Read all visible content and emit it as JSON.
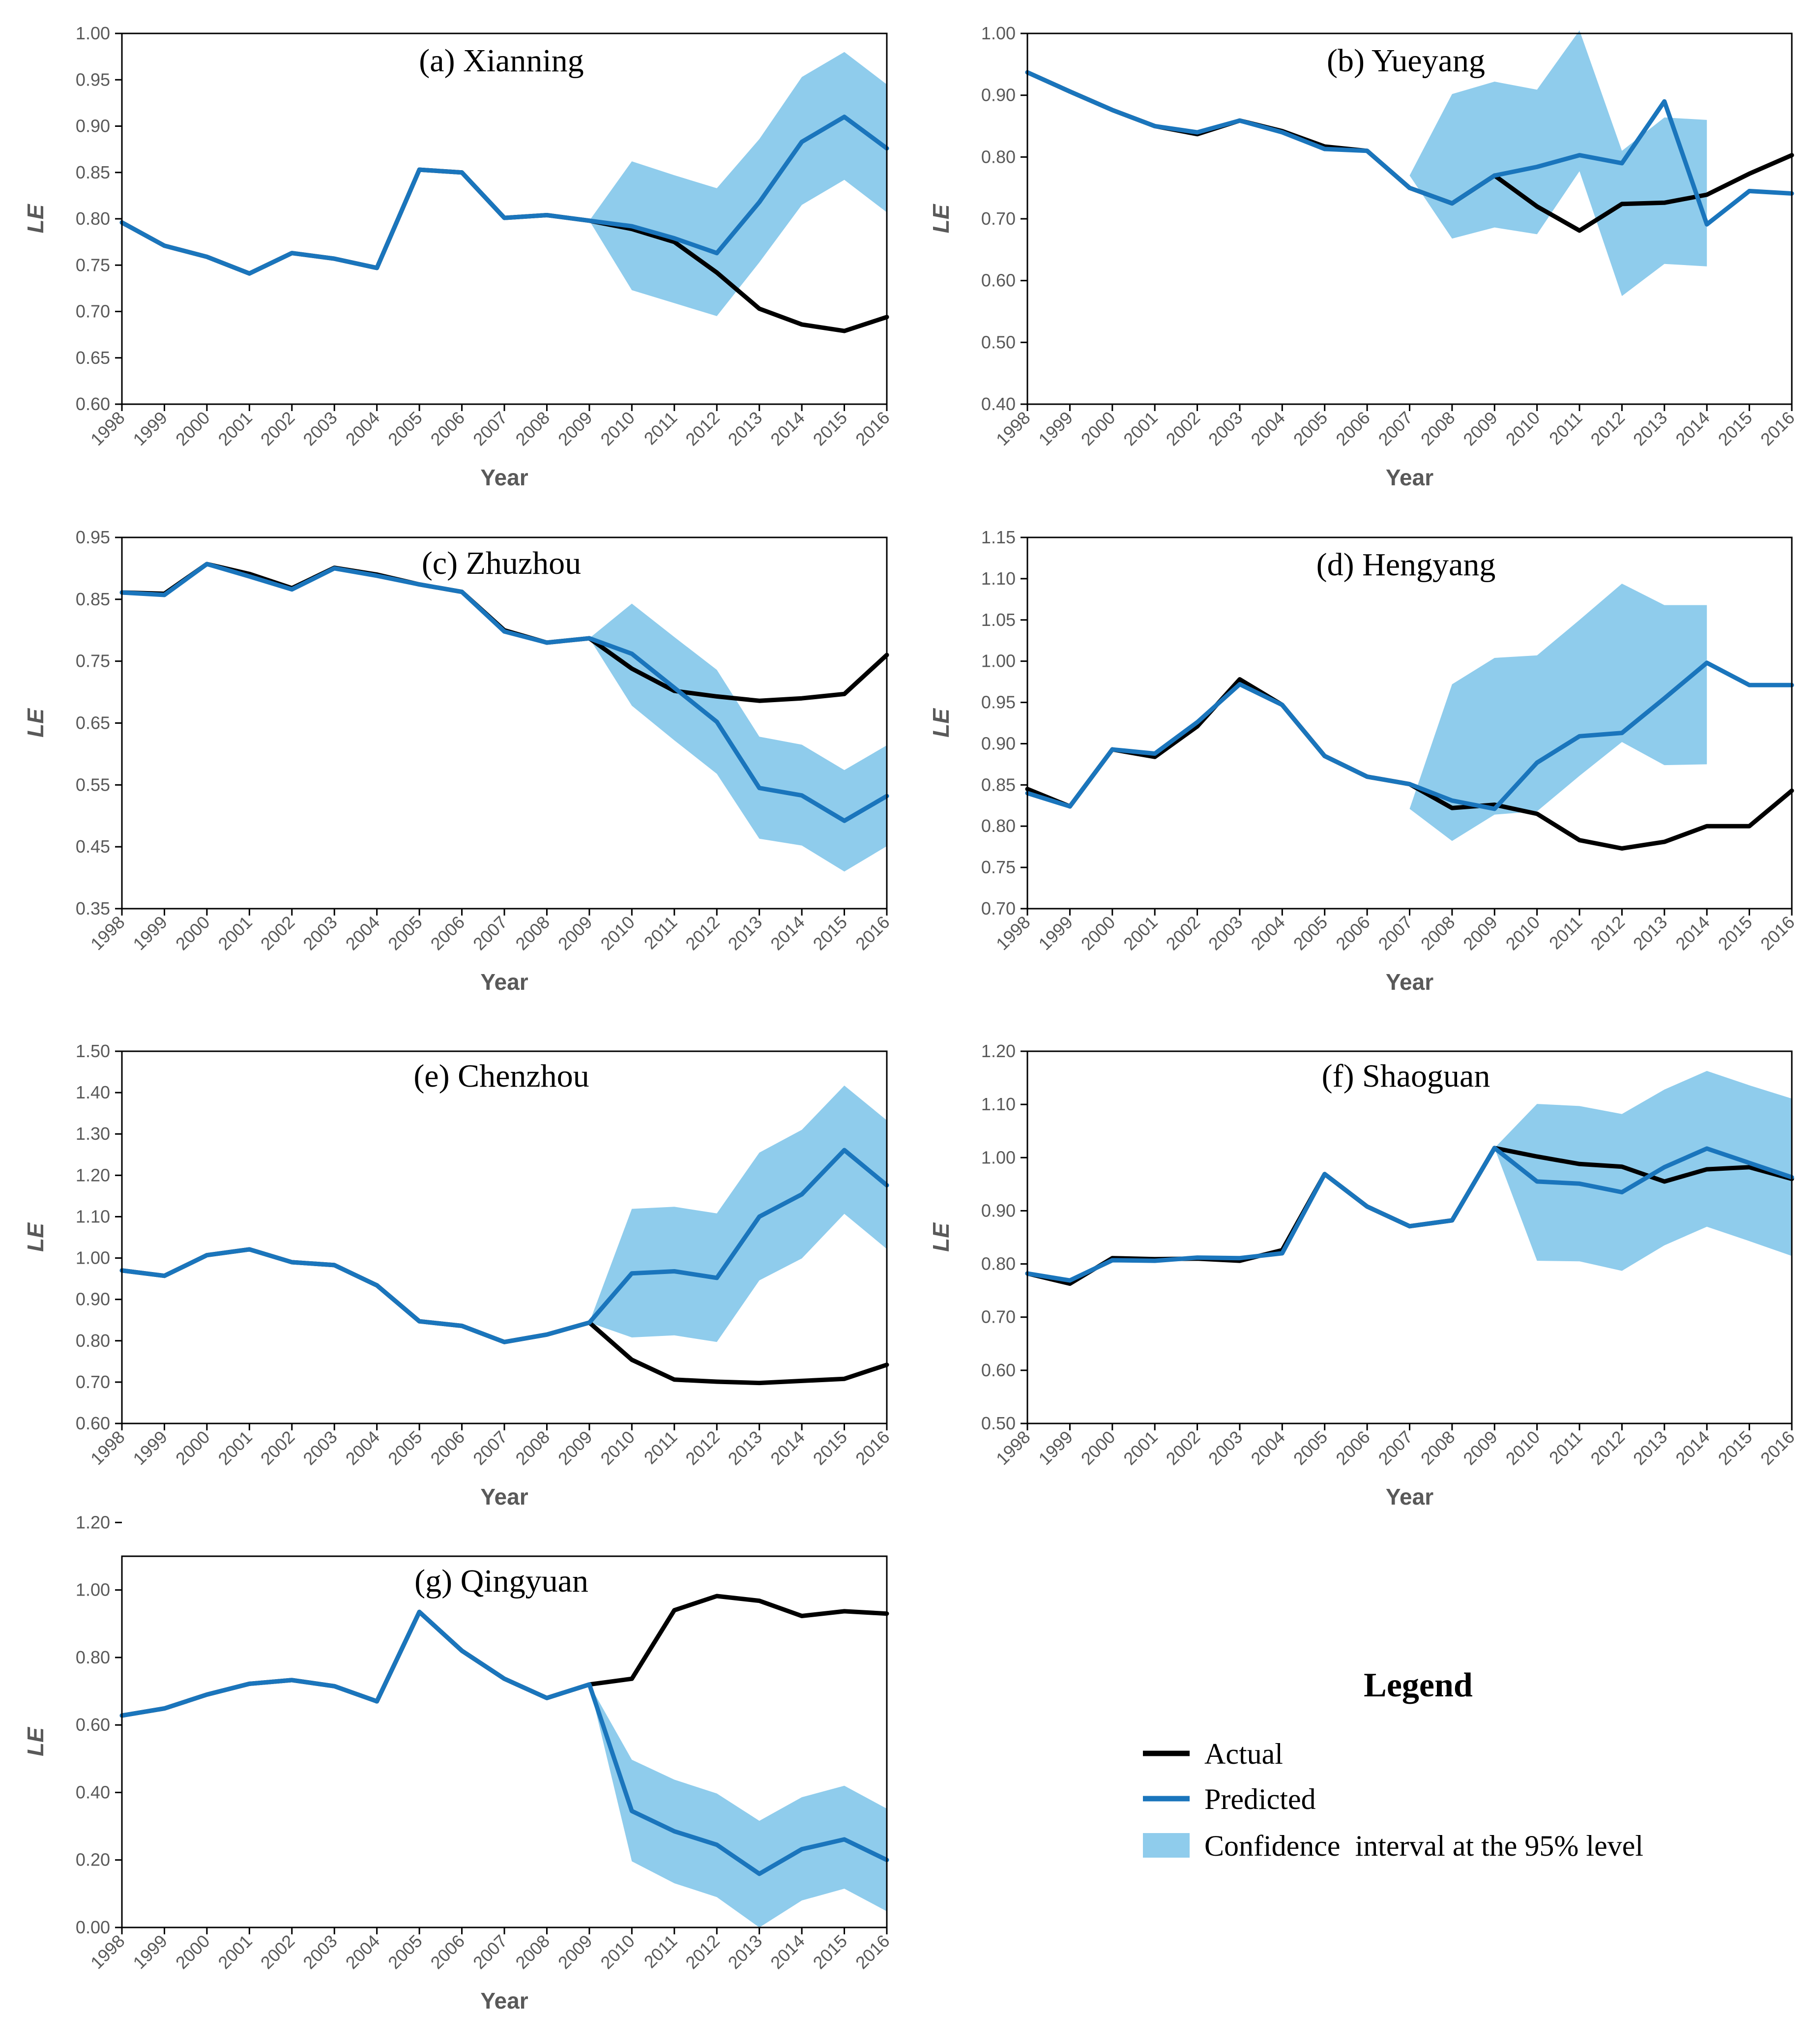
{
  "colors": {
    "actual": "#000000",
    "predicted": "#1a75bc",
    "ci": "#8fccec",
    "axis": "#000000",
    "tick": "#595959"
  },
  "legend": {
    "title": "Legend",
    "actual": "Actual",
    "predicted": "Predicted",
    "ci": "Confidence  interval at the 95% level"
  },
  "chart_data": [
    {
      "type": "line",
      "title": "(a) Xianning",
      "xlabel": "Year",
      "ylabel": "LE",
      "categories": [
        "1998",
        "1999",
        "2000",
        "2001",
        "2002",
        "2003",
        "2004",
        "2005",
        "2006",
        "2007",
        "2008",
        "2009",
        "2010",
        "2011",
        "2012",
        "2013",
        "2014",
        "2015",
        "2016"
      ],
      "ylim": [
        0.6,
        1.0
      ],
      "ystep": 0.05,
      "ydec": 2,
      "series": [
        {
          "name": "Actual",
          "values": [
            0.796,
            0.771,
            0.759,
            0.741,
            0.763,
            0.757,
            0.747,
            0.853,
            0.85,
            0.801,
            0.804,
            0.798,
            0.789,
            0.775,
            0.742,
            0.703,
            0.686,
            0.679,
            0.694
          ]
        },
        {
          "name": "Predicted",
          "values": [
            0.796,
            0.771,
            0.759,
            0.741,
            0.763,
            0.757,
            0.747,
            0.853,
            0.85,
            0.801,
            0.804,
            0.798,
            0.792,
            0.779,
            0.763,
            0.818,
            0.883,
            0.91,
            0.876
          ]
        }
      ],
      "ci": {
        "start_index": 11,
        "lower": [
          0.798,
          0.723,
          0.709,
          0.695,
          0.753,
          0.815,
          0.842,
          0.807
        ],
        "upper": [
          0.798,
          0.862,
          0.847,
          0.833,
          0.886,
          0.953,
          0.98,
          0.945
        ]
      }
    },
    {
      "type": "line",
      "title": "(b) Yueyang",
      "xlabel": "Year",
      "ylabel": "LE",
      "categories": [
        "1998",
        "1999",
        "2000",
        "2001",
        "2002",
        "2003",
        "2004",
        "2005",
        "2006",
        "2007",
        "2008",
        "2009",
        "2010",
        "2011",
        "2012",
        "2013",
        "2014",
        "2015",
        "2016"
      ],
      "ylim": [
        0.4,
        1.0
      ],
      "ystep": 0.1,
      "ydec": 2,
      "series": [
        {
          "name": "Actual",
          "values": [
            0.937,
            0.906,
            0.876,
            0.85,
            0.837,
            0.859,
            0.842,
            0.817,
            0.81,
            0.75,
            0.725,
            0.77,
            0.72,
            0.681,
            0.724,
            0.726,
            0.739,
            0.773,
            0.803
          ]
        },
        {
          "name": "Predicted",
          "values": [
            0.937,
            0.906,
            0.876,
            0.85,
            0.84,
            0.859,
            0.84,
            0.813,
            0.81,
            0.75,
            0.725,
            0.77,
            0.784,
            0.803,
            0.79,
            0.89,
            0.691,
            0.745,
            0.741
          ]
        }
      ],
      "ci": {
        "start_index": 9,
        "lower": [
          0.77,
          0.668,
          0.686,
          0.675,
          0.777,
          0.575,
          0.627,
          0.623
        ],
        "upper": [
          0.77,
          0.902,
          0.922,
          0.909,
          1.005,
          0.81,
          0.864,
          0.86
        ]
      }
    },
    {
      "type": "line",
      "title": "(c) Zhuzhou",
      "xlabel": "Year",
      "ylabel": "LE",
      "categories": [
        "1998",
        "1999",
        "2000",
        "2001",
        "2002",
        "2003",
        "2004",
        "2005",
        "2006",
        "2007",
        "2008",
        "2009",
        "2010",
        "2011",
        "2012",
        "2013",
        "2014",
        "2015",
        "2016"
      ],
      "ylim": [
        0.35,
        0.95
      ],
      "ystep": 0.1,
      "ydec": 2,
      "series": [
        {
          "name": "Actual",
          "values": [
            0.861,
            0.859,
            0.907,
            0.891,
            0.868,
            0.901,
            0.89,
            0.874,
            0.862,
            0.8,
            0.78,
            0.787,
            0.738,
            0.702,
            0.693,
            0.686,
            0.69,
            0.697,
            0.76
          ]
        },
        {
          "name": "Predicted",
          "values": [
            0.861,
            0.857,
            0.907,
            0.887,
            0.866,
            0.9,
            0.888,
            0.874,
            0.862,
            0.798,
            0.78,
            0.787,
            0.762,
            0.707,
            0.652,
            0.545,
            0.533,
            0.492,
            0.532
          ]
        }
      ],
      "ci": {
        "start_index": 11,
        "lower": [
          0.787,
          0.678,
          0.622,
          0.568,
          0.463,
          0.452,
          0.41,
          0.451
        ],
        "upper": [
          0.787,
          0.843,
          0.789,
          0.736,
          0.628,
          0.615,
          0.574,
          0.614
        ]
      }
    },
    {
      "type": "line",
      "title": "(d) Hengyang",
      "xlabel": "Year",
      "ylabel": "LE",
      "categories": [
        "1998",
        "1999",
        "2000",
        "2001",
        "2002",
        "2003",
        "2004",
        "2005",
        "2006",
        "2007",
        "2008",
        "2009",
        "2010",
        "2011",
        "2012",
        "2013",
        "2014",
        "2015",
        "2016"
      ],
      "ylim": [
        0.7,
        1.15
      ],
      "ystep": 0.05,
      "ydec": 2,
      "series": [
        {
          "name": "Actual",
          "values": [
            0.845,
            0.824,
            0.893,
            0.884,
            0.921,
            0.978,
            0.947,
            0.885,
            0.86,
            0.851,
            0.822,
            0.826,
            0.815,
            0.783,
            0.773,
            0.781,
            0.8,
            0.8,
            0.843
          ]
        },
        {
          "name": "Predicted",
          "values": [
            0.84,
            0.824,
            0.893,
            0.888,
            0.926,
            0.972,
            0.947,
            0.885,
            0.86,
            0.851,
            0.831,
            0.821,
            0.877,
            0.909,
            0.913,
            0.955,
            0.998,
            0.971,
            0.971
          ]
        }
      ],
      "ci": {
        "start_index": 9,
        "lower": [
          0.821,
          0.782,
          0.814,
          0.818,
          0.861,
          0.902,
          0.874,
          0.875
        ],
        "upper": [
          0.821,
          0.972,
          1.004,
          1.007,
          1.05,
          1.094,
          1.068,
          1.068
        ]
      }
    },
    {
      "type": "line",
      "title": "(e) Chenzhou",
      "xlabel": "Year",
      "ylabel": "LE",
      "categories": [
        "1998",
        "1999",
        "2000",
        "2001",
        "2002",
        "2003",
        "2004",
        "2005",
        "2006",
        "2007",
        "2008",
        "2009",
        "2010",
        "2011",
        "2012",
        "2013",
        "2014",
        "2015",
        "2016"
      ],
      "ylim": [
        0.6,
        1.5
      ],
      "ystep": 0.1,
      "ydec": 2,
      "series": [
        {
          "name": "Actual",
          "values": [
            0.97,
            0.957,
            1.007,
            1.021,
            0.99,
            0.983,
            0.934,
            0.847,
            0.836,
            0.797,
            0.815,
            0.844,
            0.754,
            0.706,
            0.701,
            0.698,
            0.703,
            0.708,
            0.742
          ]
        },
        {
          "name": "Predicted",
          "values": [
            0.97,
            0.957,
            1.007,
            1.021,
            0.99,
            0.983,
            0.934,
            0.847,
            0.836,
            0.797,
            0.815,
            0.844,
            0.963,
            0.968,
            0.952,
            1.1,
            1.154,
            1.261,
            1.176
          ]
        }
      ],
      "ci": {
        "start_index": 11,
        "lower": [
          0.844,
          0.808,
          0.813,
          0.797,
          0.946,
          0.999,
          1.107,
          1.022
        ],
        "upper": [
          0.844,
          1.119,
          1.124,
          1.108,
          1.255,
          1.31,
          1.417,
          1.333
        ]
      }
    },
    {
      "type": "line",
      "title": "(f) Shaoguan",
      "xlabel": "Year",
      "ylabel": "LE",
      "categories": [
        "1998",
        "1999",
        "2000",
        "2001",
        "2002",
        "2003",
        "2004",
        "2005",
        "2006",
        "2007",
        "2008",
        "2009",
        "2010",
        "2011",
        "2012",
        "2013",
        "2014",
        "2015",
        "2016"
      ],
      "ylim": [
        0.5,
        1.2
      ],
      "ystep": 0.1,
      "ydec": 2,
      "series": [
        {
          "name": "Actual",
          "values": [
            0.782,
            0.763,
            0.811,
            0.809,
            0.81,
            0.806,
            0.826,
            0.969,
            0.908,
            0.871,
            0.882,
            1.018,
            1.002,
            0.988,
            0.983,
            0.955,
            0.978,
            0.982,
            0.96
          ]
        },
        {
          "name": "Predicted",
          "values": [
            0.782,
            0.769,
            0.807,
            0.806,
            0.812,
            0.811,
            0.82,
            0.969,
            0.908,
            0.871,
            0.882,
            1.018,
            0.955,
            0.951,
            0.935,
            0.982,
            1.017,
            0.99,
            0.963
          ]
        }
      ],
      "ci": {
        "start_index": 11,
        "lower": [
          1.018,
          0.806,
          0.805,
          0.787,
          0.835,
          0.87,
          0.843,
          0.815
        ],
        "upper": [
          1.018,
          1.101,
          1.097,
          1.082,
          1.128,
          1.163,
          1.136,
          1.111
        ]
      }
    },
    {
      "type": "line",
      "title": "(g) Qingyuan",
      "xlabel": "Year",
      "ylabel": "LE",
      "categories": [
        "1998",
        "1999",
        "2000",
        "2001",
        "2002",
        "2003",
        "2004",
        "2005",
        "2006",
        "2007",
        "2008",
        "2009",
        "2010",
        "2011",
        "2012",
        "2013",
        "2014",
        "2015",
        "2016"
      ],
      "ylim": [
        0.0,
        1.1
      ],
      "ystep": 0.2,
      "ydec": 2,
      "series": [
        {
          "name": "Actual",
          "values": [
            0.628,
            0.649,
            0.69,
            0.722,
            0.733,
            0.715,
            0.67,
            0.935,
            0.82,
            0.737,
            0.68,
            0.72,
            0.737,
            0.94,
            0.982,
            0.968,
            0.923,
            0.937,
            0.93
          ]
        },
        {
          "name": "Predicted",
          "values": [
            0.628,
            0.649,
            0.69,
            0.722,
            0.733,
            0.715,
            0.67,
            0.935,
            0.82,
            0.737,
            0.68,
            0.72,
            0.345,
            0.285,
            0.245,
            0.159,
            0.232,
            0.261,
            0.2
          ]
        }
      ],
      "ci": {
        "start_index": 11,
        "lower": [
          0.72,
          0.196,
          0.131,
          0.09,
          0.0,
          0.08,
          0.115,
          0.048
        ],
        "upper": [
          0.72,
          0.497,
          0.438,
          0.397,
          0.316,
          0.386,
          0.42,
          0.352
        ]
      }
    }
  ]
}
